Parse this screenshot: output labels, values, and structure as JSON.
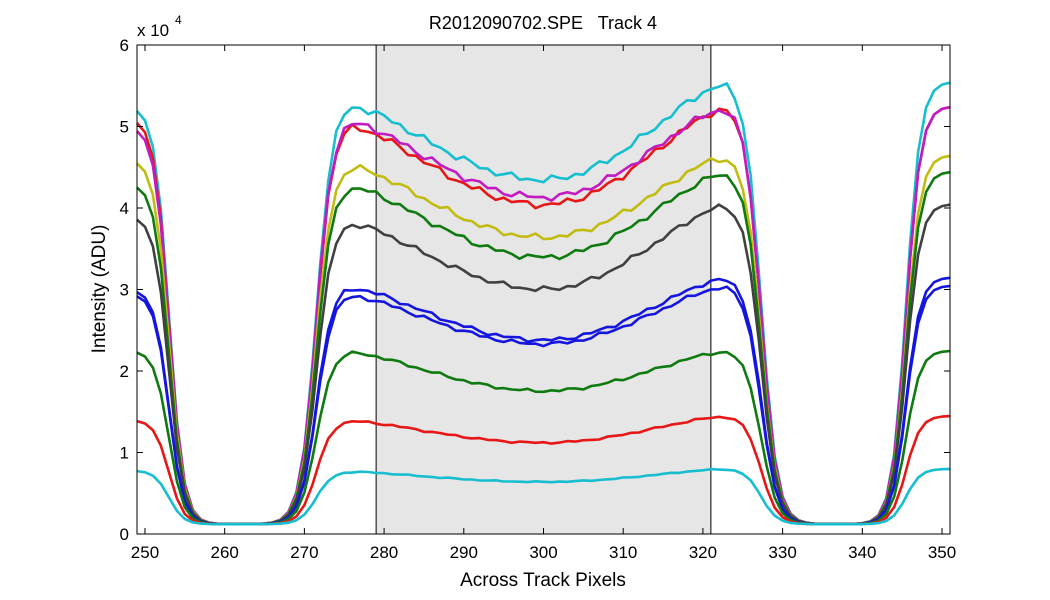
{
  "chart_data": {
    "type": "line",
    "title": "R2012090702.SPE   Track 4",
    "xlabel": "Across Track Pixels",
    "ylabel": "Intensity (ADU)",
    "y_exponent_label": "x 10",
    "y_exponent_power": "4",
    "xlim": [
      249,
      351
    ],
    "ylim": [
      0,
      60000
    ],
    "xticks": [
      250,
      260,
      270,
      280,
      290,
      300,
      310,
      320,
      330,
      340,
      350
    ],
    "yticks": [
      0,
      10000,
      20000,
      30000,
      40000,
      50000,
      60000
    ],
    "ytick_labels": [
      "0",
      "1",
      "2",
      "3",
      "4",
      "5",
      "6"
    ],
    "shaded_region": {
      "x_start": 279,
      "x_end": 321,
      "color": "#e6e6e6"
    },
    "vertical_lines": [
      279,
      321
    ],
    "series": [
      {
        "name": "cyan-top",
        "color": "#17becf",
        "max_value": 53000,
        "dip": 0.18,
        "left_edge": 52500,
        "right_edge": 55500
      },
      {
        "name": "red-upper",
        "color": "#e81717",
        "max_value": 50500,
        "dip": 0.2,
        "left_edge": 51000,
        "right_edge": 52500
      },
      {
        "name": "magenta",
        "color": "#c21bc2",
        "max_value": 51000,
        "dip": 0.19,
        "left_edge": 50000,
        "right_edge": 52500
      },
      {
        "name": "yellow",
        "color": "#c2bc11",
        "max_value": 45500,
        "dip": 0.2,
        "left_edge": 46000,
        "right_edge": 46500
      },
      {
        "name": "green-upper",
        "color": "#0f7a0f",
        "max_value": 43000,
        "dip": 0.21,
        "left_edge": 43000,
        "right_edge": 44500
      },
      {
        "name": "dark-gray",
        "color": "#404040",
        "max_value": 38500,
        "dip": 0.22,
        "left_edge": 39000,
        "right_edge": 40500
      },
      {
        "name": "blue-1",
        "color": "#1515e0",
        "max_value": 30500,
        "dip": 0.22,
        "left_edge": 30000,
        "right_edge": 31500
      },
      {
        "name": "blue-2",
        "color": "#1515e0",
        "max_value": 29500,
        "dip": 0.21,
        "left_edge": 29500,
        "right_edge": 30500
      },
      {
        "name": "green-lower",
        "color": "#0f7a0f",
        "max_value": 22500,
        "dip": 0.22,
        "left_edge": 22500,
        "right_edge": 22500
      },
      {
        "name": "red-lower",
        "color": "#e81717",
        "max_value": 14000,
        "dip": 0.2,
        "left_edge": 14000,
        "right_edge": 14500
      },
      {
        "name": "cyan-bottom",
        "color": "#17becf",
        "max_value": 7700,
        "dip": 0.17,
        "left_edge": 7800,
        "right_edge": 8000
      }
    ]
  }
}
